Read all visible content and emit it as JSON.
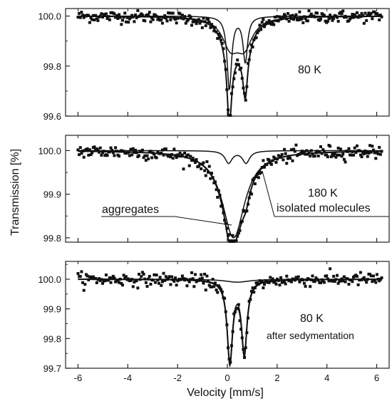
{
  "chart_data": {
    "type": "scatter",
    "xlabel": "Velocity [mm/s]",
    "ylabel": "Transmission [%]",
    "xlim": [
      -6.5,
      6.5
    ],
    "xticks": [
      -6,
      -4,
      -2,
      0,
      2,
      4,
      6
    ],
    "panels": [
      {
        "label": "80 K",
        "ylim": [
          99.6,
          100.03
        ],
        "yticks": [
          99.6,
          99.8,
          100.0
        ],
        "ytick_labels": [
          "99.6",
          "99.8",
          "100.0"
        ],
        "noise": 0.012,
        "components": [
          {
            "name": "",
            "lines": [
              {
                "center": 0.08,
                "depth": 0.29,
                "width": 0.22
              },
              {
                "center": 0.72,
                "depth": 0.18,
                "width": 0.22
              }
            ]
          },
          {
            "name": "",
            "lines": [
              {
                "center": 0.12,
                "depth": 0.11,
                "width": 0.8
              },
              {
                "center": 0.68,
                "depth": 0.11,
                "width": 0.8
              }
            ]
          }
        ]
      },
      {
        "label": "180 K",
        "ylim": [
          99.79,
          100.035
        ],
        "yticks": [
          99.8,
          99.9,
          100.0
        ],
        "ytick_labels": [
          "99.8",
          "99.9",
          "100.0"
        ],
        "noise": 0.008,
        "components": [
          {
            "name": "aggregates",
            "lines": [
              {
                "center": 0.25,
                "depth": 0.2,
                "width": 1.1
              }
            ]
          },
          {
            "name": "isolated molecules",
            "lines": [
              {
                "center": 0.05,
                "depth": 0.028,
                "width": 0.35
              },
              {
                "center": 0.75,
                "depth": 0.028,
                "width": 0.35
              }
            ]
          }
        ]
      },
      {
        "label": "80 K",
        "note": "after sedymentation",
        "ylim": [
          99.7,
          100.06
        ],
        "yticks": [
          99.7,
          99.8,
          99.9,
          100.0
        ],
        "ytick_labels": [
          "99.7",
          "99.8",
          "99.9",
          "100.0"
        ],
        "noise": 0.011,
        "components": [
          {
            "name": "",
            "lines": [
              {
                "center": 0.1,
                "depth": 0.27,
                "width": 0.26
              },
              {
                "center": 0.68,
                "depth": 0.24,
                "width": 0.26
              }
            ]
          },
          {
            "name": "",
            "lines": [
              {
                "center": 0.4,
                "depth": 0.01,
                "width": 1.2
              }
            ]
          }
        ]
      }
    ]
  }
}
